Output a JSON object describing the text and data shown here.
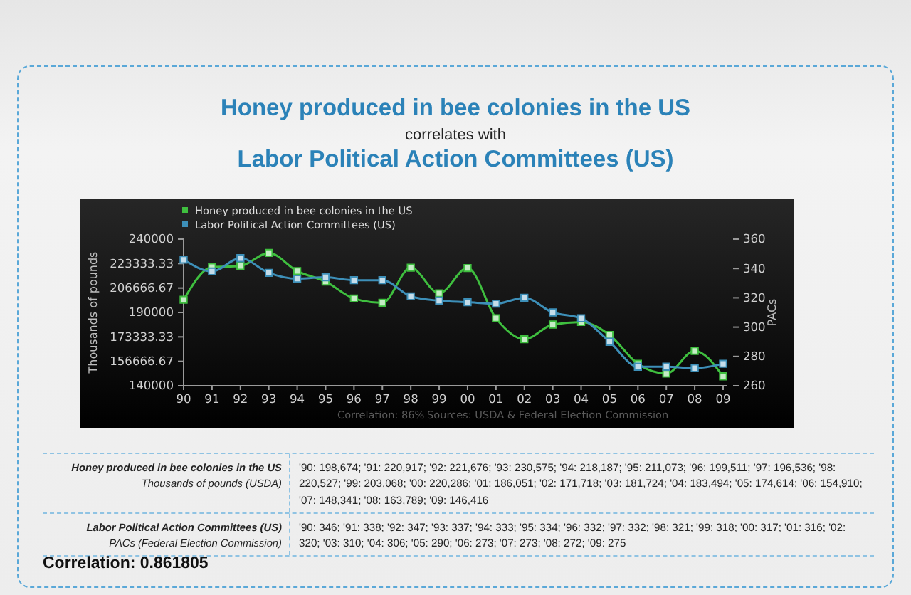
{
  "chart_data": {
    "type": "line",
    "title": "Honey produced in bee colonies in the US",
    "subtitle": "correlates with",
    "annotations": [
      "Labor Political Action Committees (US)",
      "Correlation: 86%",
      "Sources: USDA & Federal Election Commission",
      "Thousands of pounds (USDA)",
      "PACs (Federal Election Commission)",
      "Correlation: 0.861805",
      "'90: 198,674; '91: 220,917; '92: 221,676; '93: 230,575; '94: 218,187; '95: 211,073; '96: 199,511; '97: 196,536; '98: 220,527; '99: 203,068; '00: 220,286; '01: 186,051; '02: 171,718; '03: 181,724; '04: 183,494; '05: 174,614; '06: 154,910; '07: 148,341; '08: 163,789; '09: 146,416",
      "'90: 346; '91: 338; '92: 347; '93: 337; '94: 333; '95: 334; '96: 332; '97: 332; '98: 321; '99: 318; '00: 317; '01: 316; '02: 320; '03: 310; '04: 306; '05: 290; '06: 273; '07: 273; '08: 272; '09: 275"
    ],
    "ylabel": "Thousands of pounds",
    "y2label": "PACs",
    "categories": [
      "90",
      "91",
      "92",
      "93",
      "94",
      "95",
      "96",
      "97",
      "98",
      "99",
      "00",
      "01",
      "02",
      "03",
      "04",
      "05",
      "06",
      "07",
      "08",
      "09"
    ],
    "series": [
      {
        "name": "Honey produced in bee colonies in the US",
        "color": "#3fbf3f",
        "values": [
          198674,
          220917,
          221676,
          230575,
          218187,
          211073,
          199511,
          196536,
          220527,
          203068,
          220286,
          186051,
          171718,
          181724,
          183494,
          174614,
          154910,
          148341,
          163789,
          146416
        ]
      },
      {
        "name": "Labor Political Action Committees (US)",
        "color": "#3d8fb8",
        "axis": "y2",
        "values": [
          346,
          338,
          347,
          337,
          333,
          334,
          332,
          332,
          321,
          318,
          317,
          316,
          320,
          310,
          306,
          290,
          273,
          273,
          272,
          275
        ]
      }
    ],
    "ylim": [
      140000,
      240000
    ],
    "yticks": [
      140000,
      156666.67,
      173333.33,
      190000,
      206666.67,
      223333.33,
      240000
    ],
    "y2lim": [
      260,
      360
    ],
    "y2ticks": [
      260,
      280,
      300,
      320,
      340,
      360
    ],
    "grid": false,
    "legend": "top left",
    "marker": "square",
    "line_style": "solid"
  }
}
